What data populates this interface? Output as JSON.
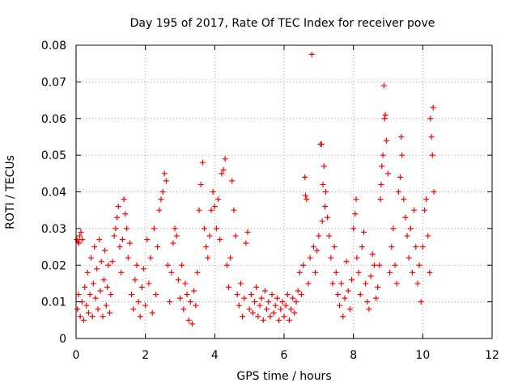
{
  "chart_data": {
    "type": "scatter",
    "title": "Day 195 of 2017, Rate Of TEC Index for receiver pove",
    "xlabel": "GPS time / hours",
    "ylabel": "ROTI / TECUs",
    "xlim": [
      0,
      12
    ],
    "ylim": [
      0,
      0.08
    ],
    "x_ticks": [
      0,
      2,
      4,
      6,
      8,
      10,
      12
    ],
    "x_tick_labels": [
      "0",
      "2",
      "4",
      "6",
      "8",
      "10",
      "12"
    ],
    "y_ticks": [
      0,
      0.01,
      0.02,
      0.03,
      0.04,
      0.05,
      0.06,
      0.07,
      0.08
    ],
    "y_tick_labels": [
      "0",
      "0.01",
      "0.02",
      "0.03",
      "0.04",
      "0.05",
      "0.06",
      "0.07",
      "0.08"
    ],
    "grid": true,
    "marker": "+",
    "marker_color": "#ff0000",
    "series": [
      {
        "name": "ROTI",
        "points": [
          [
            0.02,
            0.027
          ],
          [
            0.05,
            0.0265
          ],
          [
            0.08,
            0.026
          ],
          [
            0.1,
            0.028
          ],
          [
            0.14,
            0.029
          ],
          [
            0.18,
            0.027
          ],
          [
            0.04,
            0.008
          ],
          [
            0.07,
            0.012
          ],
          [
            0.12,
            0.006
          ],
          [
            0.17,
            0.01
          ],
          [
            0.22,
            0.005
          ],
          [
            0.25,
            0.014
          ],
          [
            0.3,
            0.009
          ],
          [
            0.33,
            0.018
          ],
          [
            0.36,
            0.007
          ],
          [
            0.4,
            0.012
          ],
          [
            0.43,
            0.022
          ],
          [
            0.47,
            0.006
          ],
          [
            0.5,
            0.015
          ],
          [
            0.53,
            0.025
          ],
          [
            0.56,
            0.011
          ],
          [
            0.6,
            0.019
          ],
          [
            0.63,
            0.008
          ],
          [
            0.67,
            0.027
          ],
          [
            0.7,
            0.013
          ],
          [
            0.73,
            0.021
          ],
          [
            0.77,
            0.006
          ],
          [
            0.8,
            0.016
          ],
          [
            0.83,
            0.024
          ],
          [
            0.87,
            0.009
          ],
          [
            0.9,
            0.014
          ],
          [
            0.93,
            0.02
          ],
          [
            0.97,
            0.007
          ],
          [
            1.0,
            0.012
          ],
          [
            1.05,
            0.021
          ],
          [
            1.1,
            0.028
          ],
          [
            1.14,
            0.03
          ],
          [
            1.18,
            0.033
          ],
          [
            1.22,
            0.036
          ],
          [
            1.26,
            0.025
          ],
          [
            1.3,
            0.018
          ],
          [
            1.34,
            0.027
          ],
          [
            1.38,
            0.038
          ],
          [
            1.42,
            0.034
          ],
          [
            1.46,
            0.03
          ],
          [
            1.5,
            0.022
          ],
          [
            1.55,
            0.026
          ],
          [
            1.6,
            0.012
          ],
          [
            1.65,
            0.008
          ],
          [
            1.7,
            0.016
          ],
          [
            1.75,
            0.02
          ],
          [
            1.8,
            0.01
          ],
          [
            1.85,
            0.006
          ],
          [
            1.9,
            0.014
          ],
          [
            1.95,
            0.019
          ],
          [
            2.0,
            0.009
          ],
          [
            2.05,
            0.027
          ],
          [
            2.1,
            0.015
          ],
          [
            2.15,
            0.022
          ],
          [
            2.2,
            0.007
          ],
          [
            2.25,
            0.03
          ],
          [
            2.3,
            0.012
          ],
          [
            2.35,
            0.025
          ],
          [
            2.4,
            0.035
          ],
          [
            2.45,
            0.038
          ],
          [
            2.5,
            0.04
          ],
          [
            2.55,
            0.045
          ],
          [
            2.6,
            0.043
          ],
          [
            2.65,
            0.02
          ],
          [
            2.7,
            0.01
          ],
          [
            2.75,
            0.018
          ],
          [
            2.8,
            0.026
          ],
          [
            2.85,
            0.03
          ],
          [
            2.9,
            0.028
          ],
          [
            2.95,
            0.016
          ],
          [
            3.0,
            0.011
          ],
          [
            3.05,
            0.02
          ],
          [
            3.1,
            0.008
          ],
          [
            3.15,
            0.015
          ],
          [
            3.2,
            0.012
          ],
          [
            3.25,
            0.005
          ],
          [
            3.3,
            0.01
          ],
          [
            3.35,
            0.004
          ],
          [
            3.4,
            0.013
          ],
          [
            3.45,
            0.009
          ],
          [
            3.5,
            0.018
          ],
          [
            3.55,
            0.035
          ],
          [
            3.6,
            0.042
          ],
          [
            3.65,
            0.048
          ],
          [
            3.7,
            0.03
          ],
          [
            3.75,
            0.025
          ],
          [
            3.8,
            0.022
          ],
          [
            3.85,
            0.028
          ],
          [
            3.9,
            0.035
          ],
          [
            3.95,
            0.04
          ],
          [
            4.0,
            0.036
          ],
          [
            4.05,
            0.03
          ],
          [
            4.1,
            0.038
          ],
          [
            4.15,
            0.027
          ],
          [
            4.2,
            0.045
          ],
          [
            4.25,
            0.046
          ],
          [
            4.3,
            0.049
          ],
          [
            4.35,
            0.02
          ],
          [
            4.4,
            0.014
          ],
          [
            4.45,
            0.022
          ],
          [
            4.5,
            0.043
          ],
          [
            4.55,
            0.035
          ],
          [
            4.6,
            0.028
          ],
          [
            4.65,
            0.012
          ],
          [
            4.7,
            0.009
          ],
          [
            4.75,
            0.015
          ],
          [
            4.8,
            0.006
          ],
          [
            4.85,
            0.011
          ],
          [
            4.9,
            0.026
          ],
          [
            4.95,
            0.029
          ],
          [
            5.0,
            0.008
          ],
          [
            5.05,
            0.012
          ],
          [
            5.1,
            0.007
          ],
          [
            5.15,
            0.01
          ],
          [
            5.2,
            0.014
          ],
          [
            5.25,
            0.006
          ],
          [
            5.3,
            0.009
          ],
          [
            5.35,
            0.011
          ],
          [
            5.4,
            0.005
          ],
          [
            5.45,
            0.013
          ],
          [
            5.5,
            0.008
          ],
          [
            5.55,
            0.01
          ],
          [
            5.6,
            0.006
          ],
          [
            5.65,
            0.012
          ],
          [
            5.7,
            0.007
          ],
          [
            5.75,
            0.009
          ],
          [
            5.8,
            0.011
          ],
          [
            5.85,
            0.005
          ],
          [
            5.9,
            0.008
          ],
          [
            5.95,
            0.01
          ],
          [
            6.0,
            0.006
          ],
          [
            6.05,
            0.009
          ],
          [
            6.1,
            0.012
          ],
          [
            6.15,
            0.005
          ],
          [
            6.2,
            0.008
          ],
          [
            6.25,
            0.011
          ],
          [
            6.3,
            0.007
          ],
          [
            6.35,
            0.01
          ],
          [
            6.4,
            0.013
          ],
          [
            6.45,
            0.018
          ],
          [
            6.5,
            0.012
          ],
          [
            6.55,
            0.02
          ],
          [
            6.6,
            0.044
          ],
          [
            6.62,
            0.039
          ],
          [
            6.65,
            0.038
          ],
          [
            6.7,
            0.015
          ],
          [
            6.75,
            0.022
          ],
          [
            6.8,
            0.0775
          ],
          [
            6.85,
            0.025
          ],
          [
            6.9,
            0.018
          ],
          [
            6.95,
            0.024
          ],
          [
            7.0,
            0.028
          ],
          [
            7.05,
            0.053
          ],
          [
            7.08,
            0.053
          ],
          [
            7.1,
            0.032
          ],
          [
            7.12,
            0.042
          ],
          [
            7.15,
            0.047
          ],
          [
            7.18,
            0.036
          ],
          [
            7.2,
            0.04
          ],
          [
            7.25,
            0.033
          ],
          [
            7.3,
            0.028
          ],
          [
            7.35,
            0.022
          ],
          [
            7.4,
            0.015
          ],
          [
            7.45,
            0.025
          ],
          [
            7.5,
            0.018
          ],
          [
            7.55,
            0.012
          ],
          [
            7.6,
            0.009
          ],
          [
            7.65,
            0.015
          ],
          [
            7.7,
            0.006
          ],
          [
            7.75,
            0.011
          ],
          [
            7.8,
            0.021
          ],
          [
            7.85,
            0.013
          ],
          [
            7.9,
            0.008
          ],
          [
            7.95,
            0.016
          ],
          [
            8.0,
            0.03
          ],
          [
            8.05,
            0.034
          ],
          [
            8.08,
            0.038
          ],
          [
            8.1,
            0.022
          ],
          [
            8.15,
            0.018
          ],
          [
            8.2,
            0.012
          ],
          [
            8.25,
            0.025
          ],
          [
            8.3,
            0.029
          ],
          [
            8.35,
            0.015
          ],
          [
            8.4,
            0.01
          ],
          [
            8.45,
            0.008
          ],
          [
            8.5,
            0.017
          ],
          [
            8.55,
            0.023
          ],
          [
            8.6,
            0.02
          ],
          [
            8.65,
            0.011
          ],
          [
            8.7,
            0.014
          ],
          [
            8.75,
            0.02
          ],
          [
            8.78,
            0.038
          ],
          [
            8.8,
            0.042
          ],
          [
            8.82,
            0.047
          ],
          [
            8.85,
            0.05
          ],
          [
            8.88,
            0.069
          ],
          [
            8.9,
            0.06
          ],
          [
            8.92,
            0.061
          ],
          [
            8.95,
            0.054
          ],
          [
            9.0,
            0.045
          ],
          [
            9.05,
            0.018
          ],
          [
            9.1,
            0.025
          ],
          [
            9.15,
            0.03
          ],
          [
            9.2,
            0.02
          ],
          [
            9.25,
            0.015
          ],
          [
            9.3,
            0.04
          ],
          [
            9.35,
            0.044
          ],
          [
            9.38,
            0.055
          ],
          [
            9.4,
            0.05
          ],
          [
            9.45,
            0.038
          ],
          [
            9.5,
            0.033
          ],
          [
            9.55,
            0.028
          ],
          [
            9.6,
            0.022
          ],
          [
            9.65,
            0.03
          ],
          [
            9.7,
            0.018
          ],
          [
            9.75,
            0.035
          ],
          [
            9.8,
            0.025
          ],
          [
            9.85,
            0.015
          ],
          [
            9.9,
            0.02
          ],
          [
            9.95,
            0.01
          ],
          [
            10.0,
            0.025
          ],
          [
            10.05,
            0.035
          ],
          [
            10.1,
            0.038
          ],
          [
            10.15,
            0.028
          ],
          [
            10.2,
            0.018
          ],
          [
            10.22,
            0.06
          ],
          [
            10.25,
            0.055
          ],
          [
            10.28,
            0.05
          ],
          [
            10.3,
            0.063
          ],
          [
            10.32,
            0.04
          ]
        ]
      }
    ]
  }
}
